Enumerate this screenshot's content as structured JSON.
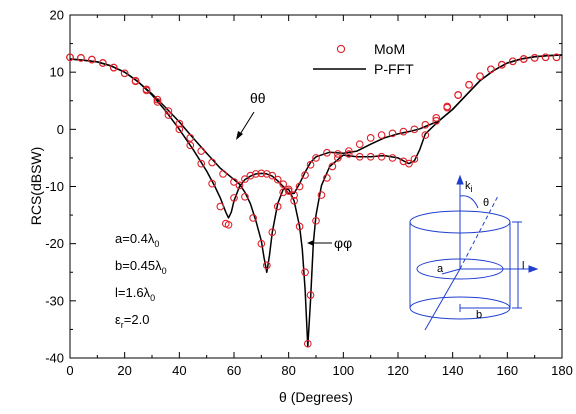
{
  "chart_data": {
    "type": "line",
    "xlabel": "θ (Degrees)",
    "ylabel": "RCS(dBSW)",
    "xlim": [
      0,
      180
    ],
    "ylim": [
      -40,
      20
    ],
    "xticks": [
      0,
      20,
      40,
      60,
      80,
      100,
      120,
      140,
      160,
      180
    ],
    "yticks": [
      -40,
      -30,
      -20,
      -10,
      0,
      10,
      20
    ],
    "grid": false,
    "legend_position": "top-right",
    "legend": [
      {
        "label": "MoM",
        "marker": "open-circle",
        "color": "#e0202a"
      },
      {
        "label": "P-FFT",
        "marker": "line",
        "color": "#000000"
      }
    ],
    "annotations": [
      {
        "text": "θθ",
        "x": 63,
        "y": 5
      },
      {
        "text": "φφ",
        "x": 95,
        "y": -19.5
      }
    ],
    "params": [
      {
        "main": "a=0.4λ",
        "sub": "0",
        "tail": ""
      },
      {
        "main": "b=0.45λ",
        "sub": "0",
        "tail": ""
      },
      {
        "main": "l=1.6λ",
        "sub": "0",
        "tail": ""
      },
      {
        "main": "ε",
        "sub": "r",
        "tail": "=2.0"
      }
    ],
    "inset_labels": {
      "k": "k",
      "k_sub": "i",
      "theta": "θ",
      "a": "a",
      "b": "b",
      "l": "l"
    },
    "series": [
      {
        "name": "P-FFT θθ",
        "color": "#000000",
        "x": [
          0,
          5,
          10,
          15,
          20,
          25,
          30,
          35,
          40,
          45,
          50,
          53,
          55,
          57,
          58,
          59,
          60,
          62,
          64,
          66,
          68,
          70,
          72,
          74,
          76,
          78,
          80,
          82,
          84,
          86,
          88,
          90,
          95,
          100,
          105,
          110,
          115,
          120,
          125,
          128,
          130,
          135,
          140,
          145,
          150,
          155,
          160,
          165,
          170,
          175,
          180
        ],
        "y": [
          12.3,
          12.1,
          11.8,
          11.1,
          10.0,
          8.3,
          6.0,
          3.2,
          0,
          -3.5,
          -7.3,
          -10,
          -12,
          -14.5,
          -15.5,
          -14.5,
          -12.5,
          -10,
          -8.8,
          -8.2,
          -7.8,
          -7.7,
          -7.8,
          -8.2,
          -9.0,
          -10.0,
          -11.3,
          -11.2,
          -9.5,
          -7.5,
          -5.8,
          -4.8,
          -4.0,
          -4.2,
          -3.8,
          -2.6,
          -1.5,
          -0.8,
          -0.3,
          0.1,
          0.5,
          1.5,
          3.5,
          6.0,
          8.5,
          10.3,
          11.6,
          12.3,
          12.7,
          12.9,
          13.0
        ]
      },
      {
        "name": "P-FFT φφ",
        "color": "#000000",
        "x": [
          0,
          5,
          10,
          15,
          20,
          25,
          30,
          35,
          40,
          45,
          50,
          55,
          60,
          62,
          64,
          66,
          68,
          70,
          71,
          72,
          73,
          74,
          76,
          78,
          80,
          82,
          84,
          85,
          86,
          87,
          88,
          89,
          90,
          92,
          95,
          100,
          105,
          110,
          115,
          120,
          122,
          124,
          126,
          128,
          130,
          135,
          140,
          145,
          150,
          155,
          160,
          165,
          170,
          175,
          180
        ],
        "y": [
          12.3,
          12.1,
          11.8,
          11.1,
          10.0,
          8.3,
          6.2,
          3.8,
          1.3,
          -1.5,
          -4.2,
          -6.8,
          -8.8,
          -9.6,
          -11,
          -13,
          -16,
          -19.5,
          -22.5,
          -25,
          -22,
          -18,
          -13,
          -10.5,
          -10.5,
          -12.5,
          -17,
          -21,
          -28,
          -38,
          -30,
          -20,
          -15,
          -9.8,
          -6.5,
          -4.5,
          -4.8,
          -4.8,
          -4.6,
          -5.0,
          -5.5,
          -6.0,
          -5.5,
          -3.5,
          -0.8,
          1.5,
          3.5,
          6.0,
          8.5,
          10.3,
          11.6,
          12.3,
          12.7,
          12.9,
          13.0
        ]
      },
      {
        "name": "MoM θθ",
        "color": "#e0202a",
        "x": [
          0,
          4,
          8,
          12,
          16,
          20,
          24,
          28,
          32,
          36,
          40,
          44,
          48,
          52,
          55,
          57,
          58,
          60,
          62,
          64,
          66,
          68,
          70,
          72,
          74,
          76,
          78,
          80,
          82,
          84,
          86,
          88,
          90,
          94,
          98,
          102,
          106,
          110,
          114,
          118,
          122,
          126,
          130,
          134,
          138,
          142,
          146,
          150,
          154,
          158,
          162,
          166,
          170,
          174,
          178
        ],
        "y": [
          12.6,
          12.5,
          12.2,
          11.6,
          10.8,
          9.8,
          8.4,
          6.8,
          4.8,
          2.5,
          0,
          -2.8,
          -6.0,
          -9.5,
          -13.5,
          -16.5,
          -16.7,
          -12,
          -9.8,
          -8.7,
          -8.1,
          -7.8,
          -7.7,
          -7.8,
          -8.1,
          -8.8,
          -9.6,
          -10.8,
          -11.5,
          -10,
          -8,
          -6.2,
          -5.0,
          -4.1,
          -4.3,
          -3.8,
          -2.6,
          -1.5,
          -1.0,
          -0.7,
          -0.4,
          0.0,
          0.8,
          2.0,
          4.0,
          6.0,
          7.8,
          9.3,
          10.5,
          11.3,
          11.9,
          12.3,
          12.5,
          12.6,
          12.6
        ]
      },
      {
        "name": "MoM φφ",
        "color": "#e0202a",
        "x": [
          0,
          4,
          8,
          12,
          16,
          20,
          24,
          28,
          32,
          36,
          40,
          44,
          48,
          52,
          56,
          60,
          64,
          67,
          70,
          72,
          74,
          76,
          78,
          80,
          82,
          84,
          86,
          87,
          88,
          90,
          92,
          94,
          96,
          98,
          102,
          106,
          110,
          114,
          118,
          122,
          124,
          126,
          130,
          134,
          138,
          142,
          146,
          150,
          154,
          158,
          162,
          166,
          170,
          174,
          178
        ],
        "y": [
          12.6,
          12.5,
          12.2,
          11.6,
          10.8,
          9.8,
          8.5,
          7.0,
          5.2,
          3.2,
          1.0,
          -1.5,
          -3.8,
          -5.8,
          -7.8,
          -9.2,
          -11.8,
          -15.5,
          -20,
          -23.8,
          -18,
          -13.5,
          -11,
          -10.5,
          -12.5,
          -17,
          -25,
          -37.5,
          -29,
          -16,
          -11.5,
          -8.5,
          -6.5,
          -5.0,
          -4.3,
          -4.8,
          -4.8,
          -4.8,
          -5.0,
          -5.6,
          -6.0,
          -5.2,
          -1.0,
          1.5,
          3.8,
          6.0,
          7.8,
          9.3,
          10.5,
          11.3,
          11.9,
          12.3,
          12.5,
          12.6,
          12.6
        ]
      }
    ]
  }
}
